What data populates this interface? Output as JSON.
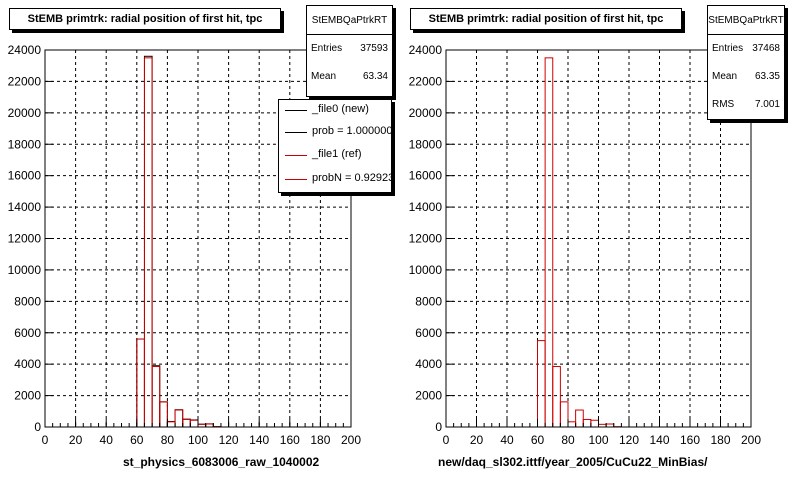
{
  "chart_data": [
    {
      "type": "bar",
      "title": "StEMB primtrk: radial position of first hit, tpc",
      "xlabel": "st_physics_6083006_raw_1040002",
      "ylabel": "",
      "xlim": [
        0,
        200
      ],
      "ylim": [
        0,
        24000
      ],
      "xticks": [
        "0",
        "20",
        "40",
        "60",
        "80",
        "100",
        "120",
        "140",
        "160",
        "180",
        "200"
      ],
      "yticks": [
        "0",
        "2000",
        "4000",
        "6000",
        "8000",
        "10000",
        "12000",
        "14000",
        "16000",
        "18000",
        "20000",
        "22000",
        "24000"
      ],
      "grid": true,
      "bin_edges": [
        0,
        5,
        10,
        15,
        20,
        25,
        30,
        35,
        40,
        45,
        50,
        55,
        60,
        65,
        70,
        75,
        80,
        85,
        90,
        95,
        100,
        105,
        110,
        115,
        120,
        125,
        130,
        135,
        140,
        145,
        150,
        155,
        160,
        165,
        170,
        175,
        180,
        185,
        190,
        195,
        200
      ],
      "series": [
        {
          "name": "_file0 (new)",
          "color": "#000000",
          "values": [
            0,
            0,
            0,
            0,
            0,
            0,
            0,
            0,
            0,
            0,
            0,
            0,
            5600,
            23600,
            3900,
            1600,
            350,
            1100,
            500,
            450,
            180,
            200,
            20,
            0,
            0,
            0,
            0,
            0,
            0,
            0,
            0,
            0,
            0,
            0,
            0,
            0,
            0,
            0,
            0,
            0
          ]
        },
        {
          "name": "_file1 (ref)",
          "color": "#cc0000",
          "values": [
            0,
            0,
            0,
            0,
            0,
            0,
            0,
            0,
            0,
            0,
            0,
            0,
            5600,
            23500,
            3850,
            1600,
            330,
            1080,
            480,
            430,
            170,
            190,
            20,
            0,
            0,
            0,
            0,
            0,
            0,
            0,
            0,
            0,
            0,
            0,
            0,
            0,
            0,
            0,
            0,
            0
          ]
        }
      ],
      "stats": {
        "name": "StEMBQaPtrkRT",
        "entries_label": "Entries",
        "entries": "37593",
        "mean_label": "Mean",
        "mean": "63.34"
      },
      "legend": {
        "placement": "top-right",
        "entries": [
          {
            "text": "_file0 (new)",
            "color": "#000000"
          },
          {
            "text": "prob = 1.000000",
            "color": "#000000"
          },
          {
            "text": "_file1 (ref)",
            "color": "#cc0000"
          },
          {
            "text": "probN = 0.929234",
            "color": "#cc0000"
          }
        ]
      }
    },
    {
      "type": "bar",
      "title": "StEMB primtrk: radial position of first hit, tpc",
      "xlabel": "new/daq_sl302.ittf/year_2005/CuCu22_MinBias/",
      "ylabel": "",
      "xlim": [
        0,
        200
      ],
      "ylim": [
        0,
        24000
      ],
      "xticks": [
        "0",
        "20",
        "40",
        "60",
        "80",
        "100",
        "120",
        "140",
        "160",
        "180",
        "200"
      ],
      "yticks": [
        "0",
        "2000",
        "4000",
        "6000",
        "8000",
        "10000",
        "12000",
        "14000",
        "16000",
        "18000",
        "20000",
        "22000",
        "24000"
      ],
      "grid": true,
      "bin_edges": [
        0,
        5,
        10,
        15,
        20,
        25,
        30,
        35,
        40,
        45,
        50,
        55,
        60,
        65,
        70,
        75,
        80,
        85,
        90,
        95,
        100,
        105,
        110,
        115,
        120,
        125,
        130,
        135,
        140,
        145,
        150,
        155,
        160,
        165,
        170,
        175,
        180,
        185,
        190,
        195,
        200
      ],
      "series": [
        {
          "name": "",
          "color": "#cc0000",
          "values": [
            0,
            0,
            0,
            0,
            0,
            0,
            0,
            0,
            0,
            0,
            0,
            0,
            5500,
            23500,
            3850,
            1600,
            330,
            1080,
            480,
            430,
            170,
            190,
            20,
            0,
            0,
            0,
            0,
            0,
            0,
            0,
            0,
            0,
            0,
            0,
            0,
            0,
            0,
            0,
            0,
            0
          ]
        }
      ],
      "stats": {
        "name": "StEMBQaPtrkRT",
        "entries_label": "Entries",
        "entries": "37468",
        "mean_label": "Mean",
        "mean": "63.35",
        "rms_label": "RMS",
        "rms": "7.001"
      }
    }
  ]
}
